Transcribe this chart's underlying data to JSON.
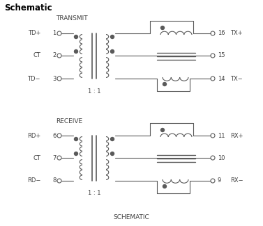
{
  "title": "Schematic",
  "transmit_label": "TRANSMIT",
  "receive_label": "RECEIVE",
  "schematic_label": "SCHEMATIC",
  "ratio_label": "1 : 1",
  "bg_color": "#ffffff",
  "line_color": "#5a5a5a",
  "text_color": "#404040",
  "fig_w": 3.77,
  "fig_h": 3.25,
  "dpi": 100
}
